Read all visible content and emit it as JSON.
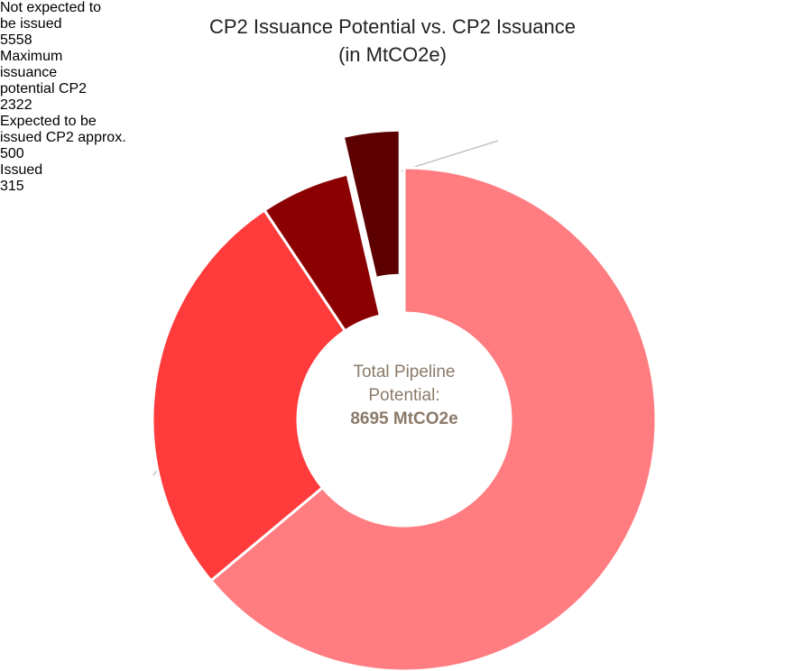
{
  "chart_data": {
    "type": "donut",
    "title": "CP2 Issuance Potential vs. CP2 Issuance",
    "subtitle": "(in MtCO2e)",
    "categories": [
      "Not expected to be issued",
      "Maximum issuance potential CP2",
      "Expected to be issued CP2 approx.",
      "Issued"
    ],
    "values": [
      5558,
      2322,
      500,
      315
    ],
    "colors": [
      "#ff7c80",
      "#ff3b3b",
      "#8b0000",
      "#5c0000"
    ],
    "center_label": "Total Pipeline Potential:",
    "center_value": "8695 MtCO2e"
  }
}
